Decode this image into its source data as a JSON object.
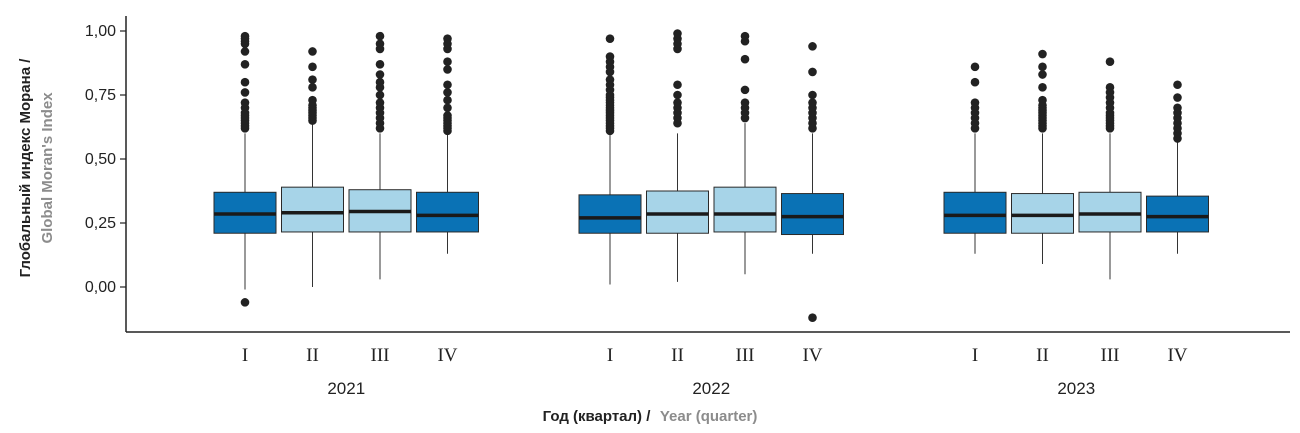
{
  "chart_data": {
    "type": "boxplot",
    "ylim": [
      -0.15,
      1.05
    ],
    "y_ticks": [
      "1,00",
      "0,75",
      "0,50",
      "0,25",
      "0,00"
    ],
    "y_tick_values": [
      1.0,
      0.75,
      0.5,
      0.25,
      0.0
    ],
    "ylabel_ru": "Глобальный индекс Морана /",
    "ylabel_en": "Global Moran's Index",
    "xlabel_ru": "Год (квартал) /",
    "xlabel_en": "Year (quarter)",
    "grid": false,
    "colors": {
      "dark": "#0a72b5",
      "light": "#a7d4e8",
      "stroke": "#2a2a2a",
      "outlier": "#222222"
    },
    "groups": [
      {
        "year": "2021",
        "boxes": [
          {
            "quarter": "I",
            "color": "dark",
            "whisker_low": -0.01,
            "q1": 0.21,
            "median": 0.285,
            "q3": 0.37,
            "whisker_high": 0.6,
            "outliers": [
              -0.06,
              0.62,
              0.63,
              0.64,
              0.65,
              0.66,
              0.67,
              0.68,
              0.7,
              0.72,
              0.76,
              0.8,
              0.87,
              0.92,
              0.95,
              0.96,
              0.97,
              0.98
            ]
          },
          {
            "quarter": "II",
            "color": "light",
            "whisker_low": 0.0,
            "q1": 0.215,
            "median": 0.29,
            "q3": 0.39,
            "whisker_high": 0.64,
            "outliers": [
              0.65,
              0.66,
              0.67,
              0.68,
              0.69,
              0.7,
              0.71,
              0.73,
              0.78,
              0.81,
              0.86,
              0.92
            ]
          },
          {
            "quarter": "III",
            "color": "light",
            "whisker_low": 0.03,
            "q1": 0.215,
            "median": 0.295,
            "q3": 0.38,
            "whisker_high": 0.6,
            "outliers": [
              0.62,
              0.64,
              0.66,
              0.68,
              0.7,
              0.72,
              0.75,
              0.78,
              0.8,
              0.83,
              0.87,
              0.93,
              0.95,
              0.98
            ]
          },
          {
            "quarter": "IV",
            "color": "dark",
            "whisker_low": 0.13,
            "q1": 0.215,
            "median": 0.28,
            "q3": 0.37,
            "whisker_high": 0.6,
            "outliers": [
              0.61,
              0.62,
              0.63,
              0.64,
              0.65,
              0.66,
              0.67,
              0.7,
              0.73,
              0.76,
              0.79,
              0.85,
              0.88,
              0.93,
              0.95,
              0.97
            ]
          }
        ]
      },
      {
        "year": "2022",
        "boxes": [
          {
            "quarter": "I",
            "color": "dark",
            "whisker_low": 0.01,
            "q1": 0.21,
            "median": 0.27,
            "q3": 0.36,
            "whisker_high": 0.6,
            "outliers": [
              0.61,
              0.62,
              0.63,
              0.64,
              0.65,
              0.66,
              0.67,
              0.68,
              0.69,
              0.7,
              0.71,
              0.72,
              0.73,
              0.74,
              0.75,
              0.77,
              0.79,
              0.81,
              0.84,
              0.86,
              0.88,
              0.9,
              0.97
            ]
          },
          {
            "quarter": "II",
            "color": "light",
            "whisker_low": 0.02,
            "q1": 0.21,
            "median": 0.285,
            "q3": 0.375,
            "whisker_high": 0.6,
            "outliers": [
              0.64,
              0.66,
              0.68,
              0.7,
              0.72,
              0.75,
              0.79,
              0.93,
              0.95,
              0.97,
              0.99
            ]
          },
          {
            "quarter": "III",
            "color": "light",
            "whisker_low": 0.05,
            "q1": 0.215,
            "median": 0.285,
            "q3": 0.39,
            "whisker_high": 0.64,
            "outliers": [
              0.66,
              0.68,
              0.7,
              0.72,
              0.77,
              0.89,
              0.96,
              0.98
            ]
          },
          {
            "quarter": "IV",
            "color": "dark",
            "whisker_low": 0.13,
            "q1": 0.205,
            "median": 0.275,
            "q3": 0.365,
            "whisker_high": 0.6,
            "outliers": [
              -0.12,
              0.62,
              0.64,
              0.66,
              0.68,
              0.7,
              0.72,
              0.75,
              0.84,
              0.94
            ]
          }
        ]
      },
      {
        "year": "2023",
        "boxes": [
          {
            "quarter": "I",
            "color": "dark",
            "whisker_low": 0.13,
            "q1": 0.21,
            "median": 0.28,
            "q3": 0.37,
            "whisker_high": 0.6,
            "outliers": [
              0.62,
              0.64,
              0.66,
              0.68,
              0.7,
              0.72,
              0.8,
              0.86
            ]
          },
          {
            "quarter": "II",
            "color": "light",
            "whisker_low": 0.09,
            "q1": 0.21,
            "median": 0.28,
            "q3": 0.365,
            "whisker_high": 0.6,
            "outliers": [
              0.62,
              0.63,
              0.64,
              0.65,
              0.66,
              0.67,
              0.68,
              0.69,
              0.7,
              0.71,
              0.73,
              0.78,
              0.83,
              0.86,
              0.91
            ]
          },
          {
            "quarter": "III",
            "color": "light",
            "whisker_low": 0.03,
            "q1": 0.215,
            "median": 0.285,
            "q3": 0.37,
            "whisker_high": 0.6,
            "outliers": [
              0.62,
              0.63,
              0.64,
              0.65,
              0.66,
              0.67,
              0.68,
              0.7,
              0.72,
              0.74,
              0.76,
              0.78,
              0.88
            ]
          },
          {
            "quarter": "IV",
            "color": "dark",
            "whisker_low": 0.13,
            "q1": 0.215,
            "median": 0.275,
            "q3": 0.355,
            "whisker_high": 0.57,
            "outliers": [
              0.58,
              0.6,
              0.62,
              0.64,
              0.66,
              0.68,
              0.7,
              0.74,
              0.79
            ]
          }
        ]
      }
    ]
  }
}
